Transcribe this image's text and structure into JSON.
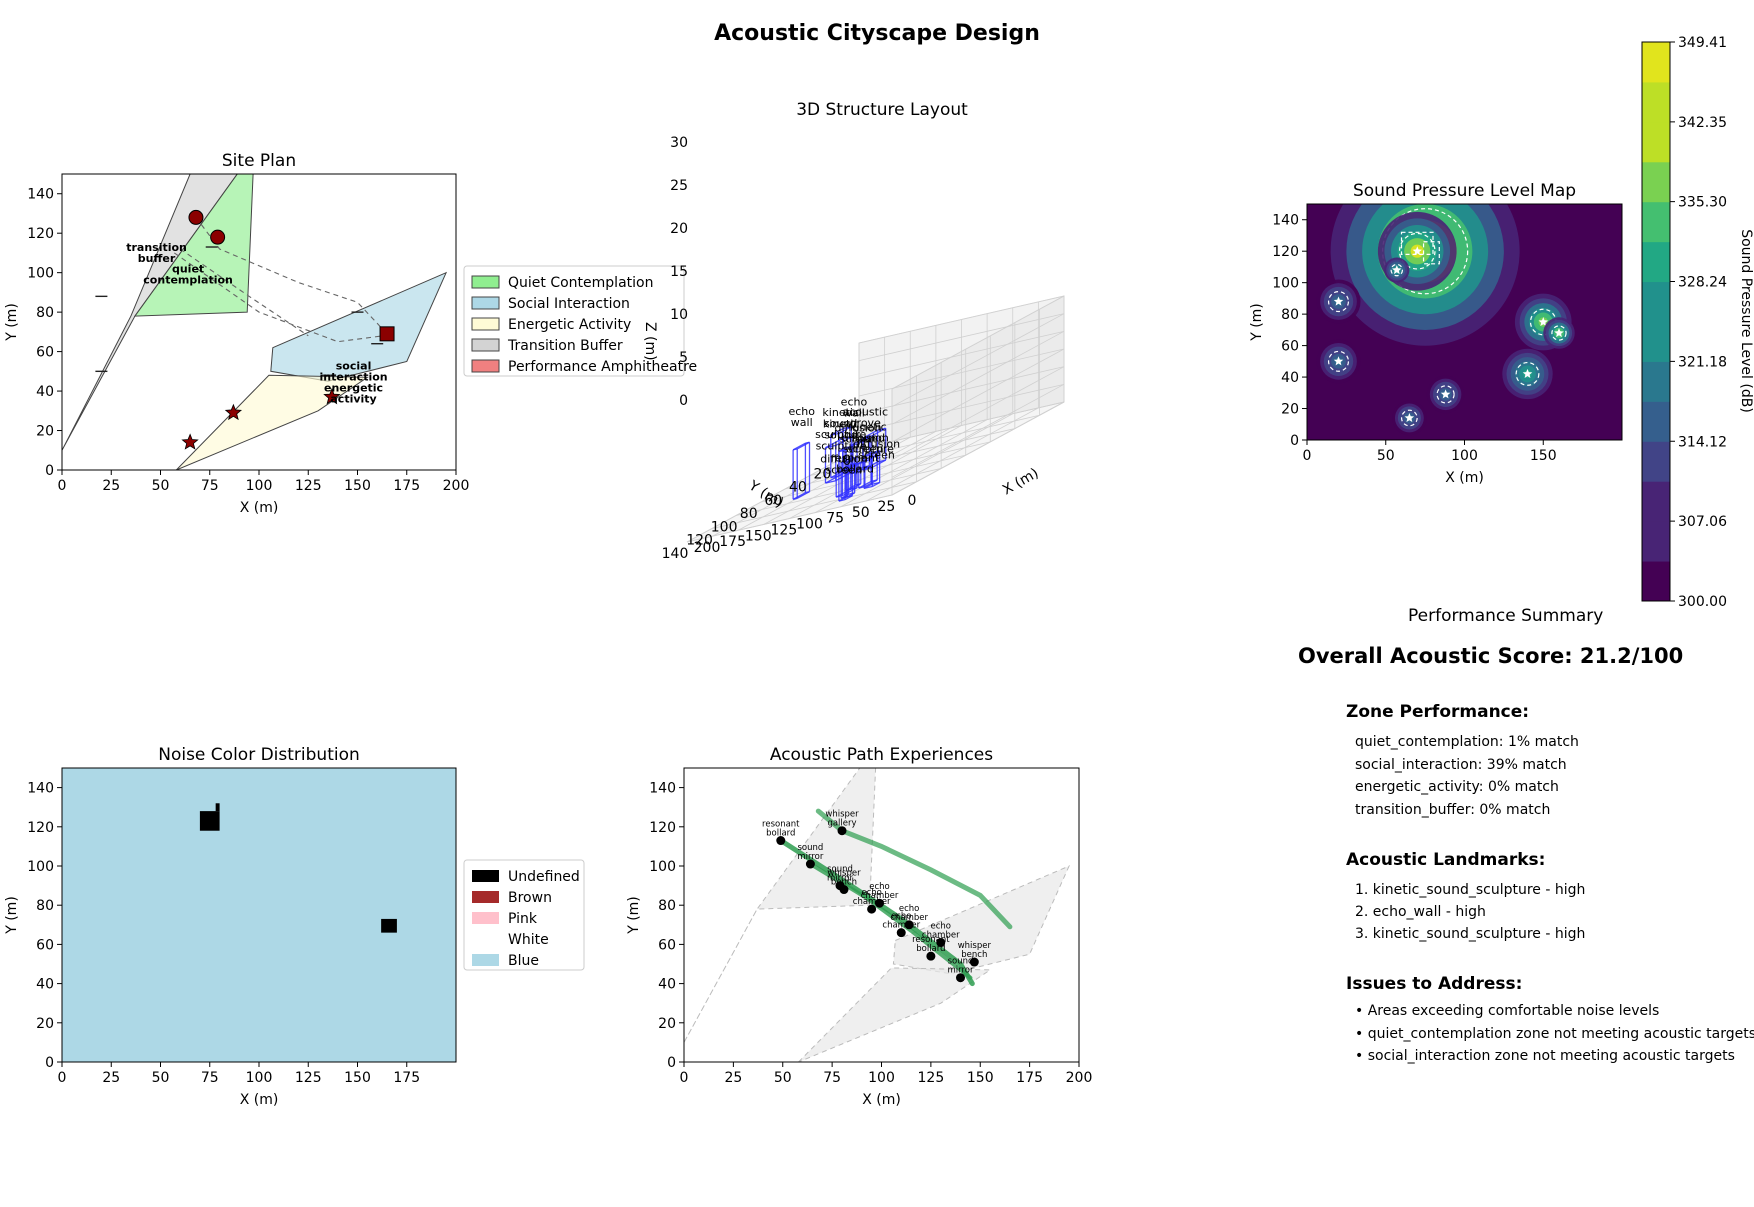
{
  "figure_title": "Acoustic Cityscape Design",
  "chart_data": [
    {
      "id": "site",
      "type": "area",
      "title": "Site Plan",
      "xlabel": "X (m)",
      "ylabel": "Y (m)",
      "xlim": [
        0,
        200
      ],
      "ylim": [
        0,
        150
      ],
      "xticks": [
        0,
        25,
        50,
        75,
        100,
        125,
        150,
        175,
        200
      ],
      "yticks": [
        0,
        20,
        40,
        60,
        80,
        100,
        120,
        140
      ],
      "legend": [
        {
          "label": "Quiet Contemplation",
          "color": "#90ee90"
        },
        {
          "label": "Social Interaction",
          "color": "#add8e6"
        },
        {
          "label": "Energetic Activity",
          "color": "#fffbd6"
        },
        {
          "label": "Transition Buffer",
          "color": "#d3d3d3"
        },
        {
          "label": "Performance Amphitheatre",
          "color": "#f08080"
        }
      ],
      "legend_placement": "outside-right",
      "zones": [
        {
          "name": "transition_buffer",
          "color": "#d3d3d3",
          "points": [
            [
              0,
              10
            ],
            [
              37,
              78
            ],
            [
              89,
              150
            ],
            [
              65,
              150
            ],
            [
              35,
              78
            ]
          ]
        },
        {
          "name": "quiet_contemplation",
          "color": "#90ee90",
          "points": [
            [
              37,
              78
            ],
            [
              89,
              150
            ],
            [
              97,
              150
            ],
            [
              94,
              80
            ]
          ]
        },
        {
          "name": "social_interaction",
          "color": "#add8e6",
          "points": [
            [
              107,
              62
            ],
            [
              195,
              100
            ],
            [
              175,
              55
            ],
            [
              135,
              45
            ],
            [
              106,
              50
            ]
          ]
        },
        {
          "name": "energetic_activity",
          "color": "#fffbd6",
          "points": [
            [
              58,
              0
            ],
            [
              105,
              48
            ],
            [
              155,
              47
            ],
            [
              130,
              30
            ]
          ]
        }
      ],
      "zone_labels": [
        {
          "lines": [
            "transition",
            "buffer"
          ],
          "x": 48,
          "y": 111
        },
        {
          "lines": [
            "quiet",
            "contemplation"
          ],
          "x": 64,
          "y": 100
        },
        {
          "lines": [
            "social",
            "interaction",
            "energetic",
            "activity"
          ],
          "x": 148,
          "y": 51
        }
      ],
      "circles": [
        [
          68,
          128
        ],
        [
          79,
          118
        ]
      ],
      "stars": [
        [
          65,
          14
        ],
        [
          87,
          29
        ],
        [
          137,
          37
        ]
      ],
      "squares": [
        [
          165,
          69
        ]
      ],
      "dashed_paths": [
        [
          [
            68,
            128
          ],
          [
            80,
            112
          ],
          [
            120,
            95
          ],
          [
            150,
            85
          ],
          [
            165,
            69
          ]
        ],
        [
          [
            57,
            110
          ],
          [
            100,
            80
          ],
          [
            140,
            65
          ],
          [
            163,
            68
          ]
        ],
        [
          [
            60,
            112
          ],
          [
            95,
            88
          ],
          [
            125,
            68
          ]
        ]
      ],
      "markers_short": [
        [
          20,
          88
        ],
        [
          20,
          50
        ],
        [
          76,
          113
        ],
        [
          150,
          80
        ],
        [
          160,
          64
        ],
        [
          135,
          48
        ]
      ]
    },
    {
      "id": "struct3d",
      "type": "scatter",
      "title": "3D Structure Layout",
      "xlabel": "X (m)",
      "ylabel": "Y (m)",
      "zlabel": "Z (m)",
      "xticks": [
        0,
        25,
        50,
        75,
        100,
        125,
        150,
        175,
        200
      ],
      "yticks": [
        0,
        20,
        40,
        60,
        80,
        100,
        120,
        140
      ],
      "zticks": [
        0,
        5,
        10,
        15,
        20,
        25,
        30
      ],
      "annotations": [
        {
          "lines": [
            "kinetic",
            "sound",
            "sculpture"
          ],
          "x": 68,
          "y": 125,
          "z": 24
        },
        {
          "lines": [
            "kinetic",
            "sound",
            "sculpture"
          ],
          "x": 76,
          "y": 118,
          "z": 20
        },
        {
          "lines": [
            "kinetic",
            "sound",
            "sculpture"
          ],
          "x": 65,
          "y": 105,
          "z": 16
        },
        {
          "lines": [
            "diffusion",
            "screen"
          ],
          "x": 80,
          "y": 95,
          "z": 12
        },
        {
          "lines": [
            "diffusion",
            "screen"
          ],
          "x": 75,
          "y": 90,
          "z": 9
        },
        {
          "lines": [
            "resonant",
            "bollard"
          ],
          "x": 90,
          "y": 95,
          "z": 7
        },
        {
          "lines": [
            "diffusion",
            "screen"
          ],
          "x": 95,
          "y": 100,
          "z": 8
        },
        {
          "lines": [
            "echo",
            "wall"
          ],
          "x": 160,
          "y": 80,
          "z": 22
        },
        {
          "lines": [
            "echo",
            "wall"
          ],
          "x": 145,
          "y": 50,
          "z": 18
        },
        {
          "lines": [
            "acoustic",
            "grove"
          ],
          "x": 140,
          "y": 45,
          "z": 14
        },
        {
          "lines": [
            "diffusion",
            "screen"
          ],
          "x": 135,
          "y": 55,
          "z": 11
        }
      ]
    },
    {
      "id": "spl",
      "type": "heatmap",
      "title": "Sound Pressure Level Map",
      "xlabel": "X (m)",
      "ylabel": "Y (m)",
      "xlim": [
        0,
        200
      ],
      "ylim": [
        0,
        150
      ],
      "xticks": [
        0,
        50,
        100,
        150
      ],
      "yticks": [
        0,
        20,
        40,
        60,
        80,
        100,
        120,
        140
      ],
      "colorbar_label": "Sound Pressure Level (dB)",
      "colorbar_ticks": [
        "300.00",
        "307.06",
        "314.12",
        "321.18",
        "328.24",
        "335.30",
        "342.35",
        "349.41"
      ],
      "crange": [
        300,
        349.41
      ],
      "sources": [
        {
          "x": 75,
          "y": 120,
          "r": 60,
          "level": 349.41
        },
        {
          "x": 70,
          "y": 120,
          "r": 25,
          "level": 345
        },
        {
          "x": 150,
          "y": 75,
          "r": 18,
          "level": 338
        },
        {
          "x": 160,
          "y": 68,
          "r": 10,
          "level": 340
        },
        {
          "x": 20,
          "y": 88,
          "r": 14,
          "level": 320
        },
        {
          "x": 20,
          "y": 50,
          "r": 14,
          "level": 320
        },
        {
          "x": 140,
          "y": 42,
          "r": 16,
          "level": 330
        },
        {
          "x": 88,
          "y": 29,
          "r": 12,
          "level": 318
        },
        {
          "x": 65,
          "y": 14,
          "r": 11,
          "level": 318
        },
        {
          "x": 57,
          "y": 108,
          "r": 8,
          "level": 330
        }
      ]
    },
    {
      "id": "noise",
      "type": "heatmap",
      "title": "Noise Color Distribution",
      "xlabel": "X (m)",
      "ylabel": "Y (m)",
      "xlim": [
        0,
        200
      ],
      "ylim": [
        0,
        150
      ],
      "xticks": [
        0,
        25,
        50,
        75,
        100,
        125,
        150,
        175
      ],
      "yticks": [
        0,
        20,
        40,
        60,
        80,
        100,
        120,
        140
      ],
      "background": "#add8e6",
      "legend": [
        {
          "label": "Undefined",
          "color": "#000000"
        },
        {
          "label": "Brown",
          "color": "#a52a2a"
        },
        {
          "label": "Pink",
          "color": "#ffc0cb"
        },
        {
          "label": "White",
          "color": "#ffffff"
        },
        {
          "label": "Blue",
          "color": "#add8e6"
        }
      ],
      "undefined_cells": [
        {
          "x": [
            70,
            80
          ],
          "y": [
            118,
            128
          ]
        },
        {
          "x": [
            78,
            80
          ],
          "y": [
            128,
            132
          ]
        },
        {
          "x": [
            162,
            170
          ],
          "y": [
            66,
            73
          ]
        }
      ]
    },
    {
      "id": "paths",
      "type": "line",
      "title": "Acoustic Path Experiences",
      "xlabel": "X (m)",
      "ylabel": "Y (m)",
      "xlim": [
        0,
        200
      ],
      "ylim": [
        0,
        150
      ],
      "xticks": [
        0,
        25,
        50,
        75,
        100,
        125,
        150,
        175,
        200
      ],
      "yticks": [
        0,
        20,
        40,
        60,
        80,
        100,
        120,
        140
      ],
      "zone_outlines": [
        [
          [
            0,
            10
          ],
          [
            37,
            78
          ],
          [
            89,
            150
          ],
          [
            97,
            150
          ],
          [
            94,
            80
          ],
          [
            37,
            78
          ]
        ],
        [
          [
            107,
            62
          ],
          [
            195,
            100
          ],
          [
            175,
            55
          ],
          [
            135,
            45
          ],
          [
            106,
            50
          ]
        ],
        [
          [
            58,
            0
          ],
          [
            105,
            48
          ],
          [
            155,
            47
          ],
          [
            130,
            30
          ]
        ]
      ],
      "series": [
        {
          "x": [
            68,
            80,
            100,
            125,
            150,
            165
          ],
          "y": [
            128,
            118,
            110,
            98,
            85,
            69
          ],
          "width": 5,
          "opacity": 0.7
        },
        {
          "x": [
            49,
            80,
            110,
            140,
            146
          ],
          "y": [
            113,
            93,
            73,
            50,
            40
          ],
          "width": 5,
          "opacity": 0.85
        },
        {
          "x": [
            64,
            92,
            115,
            145
          ],
          "y": [
            101,
            84,
            67,
            43
          ],
          "width": 4,
          "opacity": 0.8
        }
      ],
      "landmarks": [
        {
          "x": 49,
          "y": 113,
          "lines": [
            "resonant",
            "bollard"
          ]
        },
        {
          "x": 80,
          "y": 118,
          "lines": [
            "whisper",
            "gallery"
          ]
        },
        {
          "x": 64,
          "y": 101,
          "lines": [
            "sound",
            "mirror"
          ]
        },
        {
          "x": 79,
          "y": 90,
          "lines": [
            "sound",
            "mirror"
          ]
        },
        {
          "x": 81,
          "y": 88,
          "lines": [
            "whisper",
            "bench"
          ]
        },
        {
          "x": 95,
          "y": 78,
          "lines": [
            "echo",
            "chamber"
          ]
        },
        {
          "x": 99,
          "y": 81,
          "lines": [
            "echo",
            "chamber"
          ]
        },
        {
          "x": 110,
          "y": 66,
          "lines": [
            "echo",
            "chamber"
          ]
        },
        {
          "x": 114,
          "y": 70,
          "lines": [
            "echo",
            "chamber"
          ]
        },
        {
          "x": 125,
          "y": 54,
          "lines": [
            "resonant",
            "bollard"
          ]
        },
        {
          "x": 130,
          "y": 61,
          "lines": [
            "echo",
            "chamber"
          ]
        },
        {
          "x": 147,
          "y": 51,
          "lines": [
            "whisper",
            "bench"
          ]
        },
        {
          "x": 140,
          "y": 43,
          "lines": [
            "sound",
            "mirror"
          ]
        }
      ]
    }
  ],
  "summary": {
    "title": "Performance Summary",
    "score": "Overall Acoustic Score: 21.2/100",
    "zone_heading": "Zone Performance:",
    "zones": [
      "quiet_contemplation: 1% match",
      "social_interaction: 39% match",
      "energetic_activity: 0% match",
      "transition_buffer: 0% match"
    ],
    "landmark_heading": "Acoustic Landmarks:",
    "landmarks": [
      "1. kinetic_sound_sculpture - high",
      "2. echo_wall - high",
      "3. kinetic_sound_sculpture - high"
    ],
    "issues_heading": "Issues to Address:",
    "issues": [
      "• Areas exceeding comfortable noise levels",
      "• quiet_contemplation zone not meeting acoustic targets",
      "• social_interaction zone not meeting acoustic targets"
    ]
  }
}
